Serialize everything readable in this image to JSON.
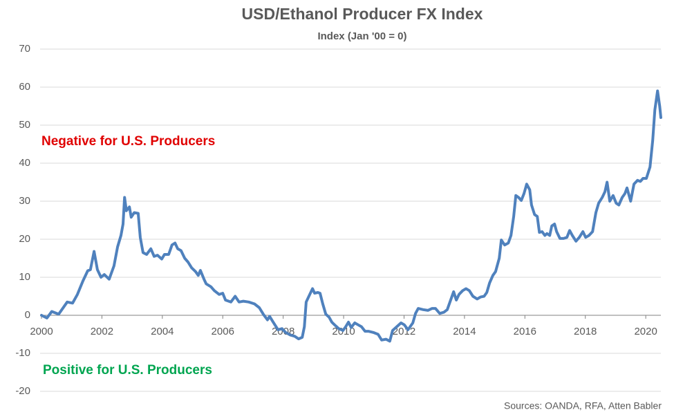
{
  "chart_data": {
    "type": "line",
    "title": "USD/Ethanol Producer FX Index",
    "subtitle": "Index (Jan '00 = 0)",
    "annotations": [
      "Negative for U.S. Producers",
      "Positive for U.S. Producers"
    ],
    "source": "Sources: OANDA, RFA, Atten Babler",
    "x": [
      2000.0,
      2000.18,
      2000.34,
      2000.57,
      2000.85,
      2001.03,
      2001.19,
      2001.37,
      2001.53,
      2001.62,
      2001.74,
      2001.85,
      2001.97,
      2002.08,
      2002.24,
      2002.4,
      2002.52,
      2002.63,
      2002.7,
      2002.75,
      2002.81,
      2002.91,
      2002.97,
      2003.07,
      2003.2,
      2003.27,
      2003.36,
      2003.48,
      2003.62,
      2003.73,
      2003.84,
      2003.98,
      2004.07,
      2004.21,
      2004.32,
      2004.42,
      2004.51,
      2004.62,
      2004.74,
      2004.85,
      2004.97,
      2005.1,
      2005.19,
      2005.26,
      2005.38,
      2005.45,
      2005.61,
      2005.72,
      2005.88,
      2006.0,
      2006.09,
      2006.27,
      2006.41,
      2006.54,
      2006.68,
      2006.86,
      2007.05,
      2007.21,
      2007.35,
      2007.48,
      2007.55,
      2007.67,
      2007.83,
      2007.96,
      2008.08,
      2008.24,
      2008.38,
      2008.51,
      2008.63,
      2008.7,
      2008.76,
      2008.88,
      2008.97,
      2009.04,
      2009.15,
      2009.22,
      2009.31,
      2009.41,
      2009.52,
      2009.61,
      2009.7,
      2009.84,
      2009.98,
      2010.07,
      2010.16,
      2010.25,
      2010.37,
      2010.48,
      2010.59,
      2010.71,
      2010.82,
      2010.98,
      2011.14,
      2011.26,
      2011.4,
      2011.53,
      2011.62,
      2011.76,
      2011.9,
      2012.01,
      2012.13,
      2012.29,
      2012.38,
      2012.47,
      2012.63,
      2012.79,
      2012.93,
      2013.04,
      2013.18,
      2013.32,
      2013.43,
      2013.52,
      2013.64,
      2013.73,
      2013.82,
      2013.94,
      2014.05,
      2014.16,
      2014.28,
      2014.42,
      2014.53,
      2014.65,
      2014.74,
      2014.83,
      2014.94,
      2015.03,
      2015.15,
      2015.22,
      2015.33,
      2015.45,
      2015.54,
      2015.63,
      2015.7,
      2015.79,
      2015.88,
      2015.97,
      2016.06,
      2016.16,
      2016.22,
      2016.32,
      2016.41,
      2016.48,
      2016.57,
      2016.66,
      2016.73,
      2016.82,
      2016.89,
      2016.98,
      2017.05,
      2017.16,
      2017.28,
      2017.39,
      2017.48,
      2017.57,
      2017.69,
      2017.8,
      2017.92,
      2018.01,
      2018.12,
      2018.24,
      2018.35,
      2018.44,
      2018.56,
      2018.65,
      2018.72,
      2018.81,
      2018.92,
      2019.02,
      2019.11,
      2019.22,
      2019.31,
      2019.38,
      2019.5,
      2019.61,
      2019.73,
      2019.82,
      2019.91,
      2020.02,
      2020.14,
      2020.23,
      2020.3,
      2020.39,
      2020.46,
      2020.5
    ],
    "series": [
      {
        "name": "USD/Ethanol Producer FX Index",
        "color": "#4f81bd",
        "values": [
          0,
          -0.7,
          1,
          0.3,
          3.5,
          3.2,
          5.5,
          9,
          11.7,
          12,
          16.8,
          12,
          10,
          10.7,
          9.5,
          13,
          18,
          21,
          24,
          31,
          27.5,
          28.5,
          25.8,
          27,
          26.8,
          20.5,
          16.5,
          16,
          17.5,
          15.5,
          15.8,
          14.8,
          16,
          16,
          18.5,
          19,
          17.5,
          17,
          15,
          14,
          12.5,
          11.5,
          10.5,
          11.8,
          9.5,
          8.3,
          7.5,
          6.5,
          5.5,
          5.8,
          4,
          3.5,
          5,
          3.5,
          3.7,
          3.5,
          3,
          2,
          0.2,
          -1.2,
          -0.3,
          -1.8,
          -3.8,
          -3.5,
          -4.5,
          -5.2,
          -5.5,
          -6.2,
          -5.8,
          -3,
          3.5,
          5.5,
          7,
          5.8,
          6,
          5.8,
          3,
          0.3,
          -0.5,
          -1.8,
          -2.5,
          -3.5,
          -4,
          -3,
          -1.8,
          -3.2,
          -2,
          -2.5,
          -3,
          -4.2,
          -4.2,
          -4.5,
          -5,
          -6.5,
          -6.3,
          -6.8,
          -4,
          -3,
          -2,
          -2.5,
          -3.8,
          -2,
          0.5,
          1.8,
          1.5,
          1.3,
          1.8,
          1.8,
          0.5,
          0.8,
          1.5,
          3.5,
          6.2,
          4,
          5.5,
          6.5,
          7,
          6.5,
          5,
          4.3,
          4.8,
          5,
          6,
          8.5,
          10.5,
          11.5,
          15,
          19.8,
          18.5,
          19,
          21,
          26,
          31.5,
          31,
          30.2,
          32,
          34.5,
          33,
          29,
          26.5,
          26,
          21.8,
          22,
          21,
          21.5,
          21,
          23.5,
          24,
          22,
          20.2,
          20.2,
          20.5,
          22.3,
          21,
          19.5,
          20.5,
          22,
          20.5,
          21,
          22,
          27,
          29.5,
          31,
          32.5,
          35,
          30,
          31.5,
          29.5,
          29,
          31,
          32,
          33.5,
          30,
          34.5,
          35.5,
          35.2,
          36,
          36,
          39,
          46,
          54,
          59,
          55,
          52
        ]
      }
    ],
    "xlim": [
      2000,
      2020.5
    ],
    "xticks": [
      2000,
      2002,
      2004,
      2006,
      2008,
      2010,
      2012,
      2014,
      2016,
      2018,
      2020
    ],
    "ylim": [
      -20,
      70
    ],
    "yticks": [
      -20,
      -10,
      0,
      10,
      20,
      30,
      40,
      50,
      60,
      70
    ],
    "grid": true
  }
}
